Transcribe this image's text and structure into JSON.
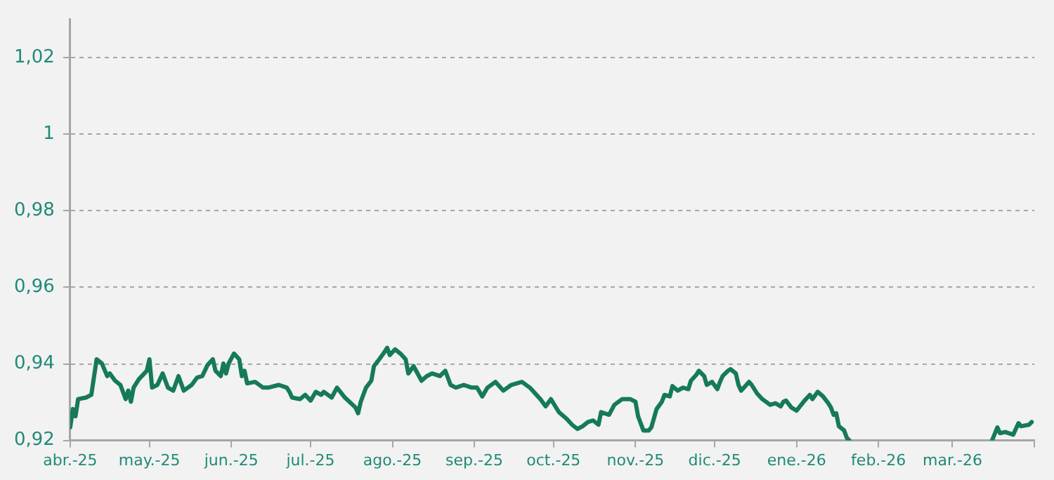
{
  "chart_data": {
    "type": "line",
    "xlim": [
      "2025-04-01",
      "2026-04-01"
    ],
    "xticks": [
      {
        "value": "2025-04-01",
        "label": "abr.-25"
      },
      {
        "value": "2025-05-01",
        "label": "may.-25"
      },
      {
        "value": "2025-06-01",
        "label": "jun.-25"
      },
      {
        "value": "2025-07-01",
        "label": "jul.-25"
      },
      {
        "value": "2025-08-01",
        "label": "ago.-25"
      },
      {
        "value": "2025-09-01",
        "label": "sep.-25"
      },
      {
        "value": "2025-10-01",
        "label": "oct.-25"
      },
      {
        "value": "2025-11-01",
        "label": "nov.-25"
      },
      {
        "value": "2025-12-01",
        "label": "dic.-25"
      },
      {
        "value": "2026-01-01",
        "label": "ene.-26"
      },
      {
        "value": "2026-02-01",
        "label": "feb.-26"
      },
      {
        "value": "2026-03-01",
        "label": "mar.-26"
      },
      {
        "value": "2026-04-01",
        "label": null
      }
    ],
    "ylim": [
      0.92,
      1.03
    ],
    "yticks": [
      {
        "value": 0.92,
        "label": "0,92"
      },
      {
        "value": 0.94,
        "label": "0,94"
      },
      {
        "value": 0.96,
        "label": "0,96"
      },
      {
        "value": 0.98,
        "label": "0,98"
      },
      1,
      {
        "value": 1.02,
        "label": "1,02"
      }
    ],
    "grid": "y",
    "marker": "none",
    "line_style": "solid",
    "series": [
      {
        "color": "#167a5a",
        "x": [
          "2025-04-01",
          "2025-04-02",
          "2025-04-03",
          "2025-04-04",
          "2025-04-07",
          "2025-04-09",
          "2025-04-11",
          "2025-04-13",
          "2025-04-15",
          "2025-04-16",
          "2025-04-18",
          "2025-04-20",
          "2025-04-22",
          "2025-04-23",
          "2025-04-24",
          "2025-04-25",
          "2025-04-27",
          "2025-04-30",
          "2025-05-01",
          "2025-05-02",
          "2025-05-04",
          "2025-05-06",
          "2025-05-08",
          "2025-05-10",
          "2025-05-12",
          "2025-05-14",
          "2025-05-17",
          "2025-05-19",
          "2025-05-21",
          "2025-05-23",
          "2025-05-25",
          "2025-05-26",
          "2025-05-28",
          "2025-05-29",
          "2025-05-30",
          "2025-05-31",
          "2025-06-02",
          "2025-06-04",
          "2025-06-05",
          "2025-06-06",
          "2025-06-07",
          "2025-06-10",
          "2025-06-13",
          "2025-06-15",
          "2025-06-19",
          "2025-06-22",
          "2025-06-23",
          "2025-06-24",
          "2025-06-27",
          "2025-06-29",
          "2025-07-01",
          "2025-07-03",
          "2025-07-05",
          "2025-07-06",
          "2025-07-09",
          "2025-07-11",
          "2025-07-14",
          "2025-07-18",
          "2025-07-19",
          "2025-07-20",
          "2025-07-22",
          "2025-07-24",
          "2025-07-25",
          "2025-07-27",
          "2025-07-29",
          "2025-07-30",
          "2025-07-31",
          "2025-08-02",
          "2025-08-04",
          "2025-08-06",
          "2025-08-07",
          "2025-08-09",
          "2025-08-12",
          "2025-08-14",
          "2025-08-16",
          "2025-08-19",
          "2025-08-21",
          "2025-08-23",
          "2025-08-25",
          "2025-08-28",
          "2025-08-31",
          "2025-09-02",
          "2025-09-04",
          "2025-09-06",
          "2025-09-09",
          "2025-09-12",
          "2025-09-15",
          "2025-09-19",
          "2025-09-22",
          "2025-09-26",
          "2025-09-28",
          "2025-09-30",
          "2025-10-03",
          "2025-10-06",
          "2025-10-08",
          "2025-10-10",
          "2025-10-12",
          "2025-10-14",
          "2025-10-16",
          "2025-10-18",
          "2025-10-19",
          "2025-10-22",
          "2025-10-24",
          "2025-10-27",
          "2025-10-30",
          "2025-11-01",
          "2025-11-02",
          "2025-11-04",
          "2025-11-06",
          "2025-11-07",
          "2025-11-09",
          "2025-11-11",
          "2025-11-12",
          "2025-11-14",
          "2025-11-15",
          "2025-11-17",
          "2025-11-19",
          "2025-11-21",
          "2025-11-22",
          "2025-11-24",
          "2025-11-25",
          "2025-11-27",
          "2025-11-28",
          "2025-11-30",
          "2025-12-02",
          "2025-12-03",
          "2025-12-04",
          "2025-12-06",
          "2025-12-07",
          "2025-12-09",
          "2025-12-10",
          "2025-12-11",
          "2025-12-14",
          "2025-12-15",
          "2025-12-17",
          "2025-12-19",
          "2025-12-22",
          "2025-12-24",
          "2025-12-26",
          "2025-12-27",
          "2025-12-28",
          "2025-12-30",
          "2026-01-01",
          "2026-01-04",
          "2026-01-06",
          "2026-01-07",
          "2026-01-09",
          "2026-01-11",
          "2026-01-13",
          "2026-01-14",
          "2026-01-15",
          "2026-01-16",
          "2026-01-17",
          "2026-01-19",
          "2026-01-20",
          "2026-01-21",
          "2026-01-22",
          "2026-03-16",
          "2026-03-18",
          "2026-03-19",
          "2026-03-21",
          "2026-03-24",
          "2026-03-26",
          "2026-03-27",
          "2026-03-30",
          "2026-03-31"
        ],
        "values": [
          0.9234,
          0.9282,
          0.9263,
          0.9308,
          0.9312,
          0.9319,
          0.9412,
          0.9401,
          0.9368,
          0.9375,
          0.9356,
          0.9345,
          0.9308,
          0.933,
          0.9301,
          0.9338,
          0.936,
          0.9382,
          0.9412,
          0.9338,
          0.9345,
          0.9375,
          0.9338,
          0.933,
          0.9368,
          0.933,
          0.9345,
          0.9364,
          0.9368,
          0.9397,
          0.9412,
          0.9382,
          0.9368,
          0.9401,
          0.9375,
          0.9401,
          0.9427,
          0.9412,
          0.9368,
          0.9382,
          0.9349,
          0.9353,
          0.9338,
          0.9338,
          0.9345,
          0.9338,
          0.9327,
          0.9312,
          0.9308,
          0.9319,
          0.9304,
          0.9327,
          0.9319,
          0.9327,
          0.9312,
          0.9338,
          0.9312,
          0.9286,
          0.9271,
          0.9301,
          0.9338,
          0.9356,
          0.9394,
          0.9412,
          0.9431,
          0.9442,
          0.9423,
          0.9438,
          0.9427,
          0.9412,
          0.9375,
          0.9394,
          0.9356,
          0.9368,
          0.9375,
          0.9368,
          0.9382,
          0.9345,
          0.9338,
          0.9345,
          0.9338,
          0.9338,
          0.9315,
          0.9338,
          0.9353,
          0.933,
          0.9345,
          0.9353,
          0.9338,
          0.9308,
          0.9289,
          0.9308,
          0.9274,
          0.9256,
          0.9241,
          0.923,
          0.9237,
          0.9248,
          0.9252,
          0.9241,
          0.9274,
          0.9267,
          0.9293,
          0.9308,
          0.9308,
          0.9301,
          0.9263,
          0.9226,
          0.9226,
          0.9234,
          0.9282,
          0.9301,
          0.9319,
          0.9315,
          0.9342,
          0.933,
          0.9338,
          0.9334,
          0.9356,
          0.9371,
          0.9382,
          0.9368,
          0.9345,
          0.9353,
          0.9334,
          0.9353,
          0.9368,
          0.9382,
          0.9386,
          0.9375,
          0.9345,
          0.933,
          0.9353,
          0.9345,
          0.9323,
          0.9308,
          0.9293,
          0.9297,
          0.9289,
          0.9301,
          0.9304,
          0.9286,
          0.9278,
          0.9304,
          0.9319,
          0.9308,
          0.9327,
          0.9315,
          0.9297,
          0.9286,
          0.9267,
          0.9271,
          0.9237,
          0.9226,
          0.9207,
          0.92,
          null,
          0.92,
          0.9234,
          0.9219,
          0.9222,
          0.9215,
          0.9245,
          0.9237,
          0.9241,
          0.9248
        ]
      }
    ]
  }
}
